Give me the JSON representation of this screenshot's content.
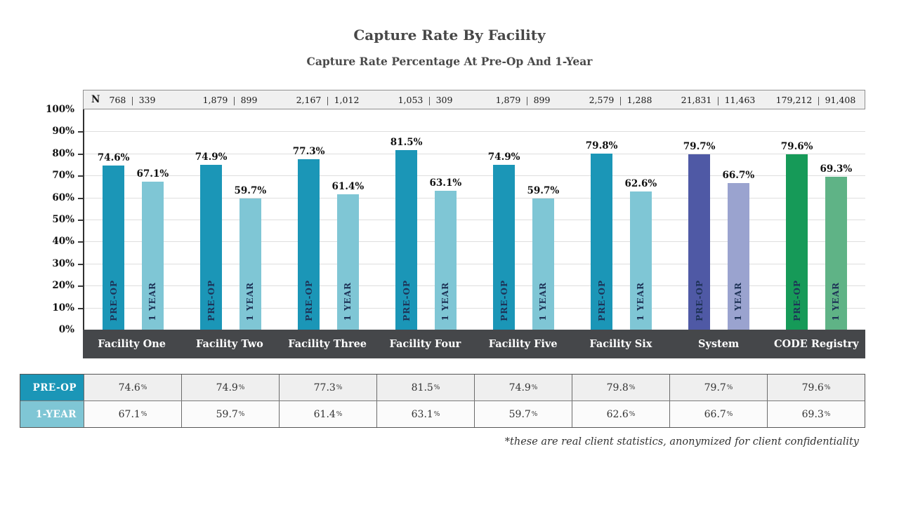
{
  "title": "Capture Rate By Facility",
  "subtitle": "Capture Rate Percentage At Pre-Op And 1-Year",
  "footnote": "*these are real client statistics, anonymized for client confidentiality",
  "misc": {
    "divider": "|",
    "percent": "%"
  },
  "colors": {
    "pre_op_teal": "#1b96b7",
    "one_year_teal": "#7fc6d5",
    "pre_op_purple": "#4f59a5",
    "one_year_purple": "#9aa3cf",
    "pre_op_green": "#169a58",
    "one_year_green": "#5fb386",
    "axis_band": "#45474a",
    "n_row_bg": "#f0f0f0",
    "bar_inner_text": "#1e3357"
  },
  "chart_data": {
    "type": "bar",
    "title": "Capture Rate By Facility",
    "subtitle": "Capture Rate Percentage At Pre-Op And 1-Year",
    "categories": [
      "Facility One",
      "Facility Two",
      "Facility Three",
      "Facility Four",
      "Facility Five",
      "Facility Six",
      "System",
      "CODE Registry"
    ],
    "series": [
      {
        "name": "PRE-OP",
        "bar_label": "PRE-OP",
        "values": [
          74.6,
          74.9,
          77.3,
          81.5,
          74.9,
          79.8,
          79.7,
          79.6
        ]
      },
      {
        "name": "1-YEAR",
        "bar_label": "1 YEAR",
        "values": [
          67.1,
          59.7,
          61.4,
          63.1,
          59.7,
          62.6,
          66.7,
          69.3
        ]
      }
    ],
    "n_label": "N",
    "n_pairs": [
      [
        "768",
        "339"
      ],
      [
        "1,879",
        "899"
      ],
      [
        "2,167",
        "1,012"
      ],
      [
        "1,053",
        "309"
      ],
      [
        "1,879",
        "899"
      ],
      [
        "2,579",
        "1,288"
      ],
      [
        "21,831",
        "11,463"
      ],
      [
        "179,212",
        "91,408"
      ]
    ],
    "y_ticks": [
      "100%",
      "90%",
      "80%",
      "70%",
      "60%",
      "50%",
      "40%",
      "30%",
      "20%",
      "10%",
      "0%"
    ],
    "ylim": [
      0,
      100
    ],
    "grid": true,
    "legend_position": "table-below"
  },
  "table": {
    "row_headers": [
      "PRE-OP",
      "1-YEAR"
    ]
  }
}
